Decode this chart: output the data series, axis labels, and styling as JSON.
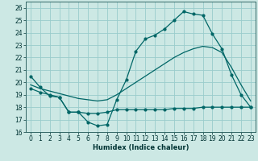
{
  "xlabel": "Humidex (Indice chaleur)",
  "background_color": "#cce8e4",
  "grid_color": "#99cccc",
  "line_color": "#006666",
  "xlim": [
    -0.5,
    23.5
  ],
  "ylim": [
    16,
    26.5
  ],
  "xticks": [
    0,
    1,
    2,
    3,
    4,
    5,
    6,
    7,
    8,
    9,
    10,
    11,
    12,
    13,
    14,
    15,
    16,
    17,
    18,
    19,
    20,
    21,
    22,
    23
  ],
  "yticks": [
    16,
    17,
    18,
    19,
    20,
    21,
    22,
    23,
    24,
    25,
    26
  ],
  "curve1_x": [
    0,
    1,
    2,
    3,
    4,
    5,
    6,
    7,
    8,
    9,
    10,
    11,
    12,
    13,
    14,
    15,
    16,
    17,
    18,
    19,
    20,
    21,
    22,
    23
  ],
  "curve1_y": [
    20.5,
    19.6,
    18.9,
    18.8,
    17.6,
    17.6,
    16.8,
    16.5,
    16.6,
    18.6,
    20.2,
    22.5,
    23.5,
    23.8,
    24.3,
    25.0,
    25.7,
    25.5,
    25.4,
    23.9,
    22.7,
    20.6,
    19.0,
    18.0
  ],
  "curve2_x": [
    0,
    1,
    2,
    3,
    4,
    5,
    6,
    7,
    8,
    9,
    10,
    11,
    12,
    13,
    14,
    15,
    16,
    17,
    18,
    19,
    20,
    21,
    22,
    23
  ],
  "curve2_y": [
    19.8,
    19.5,
    19.3,
    19.1,
    18.9,
    18.7,
    18.6,
    18.5,
    18.6,
    19.0,
    19.5,
    20.0,
    20.5,
    21.0,
    21.5,
    22.0,
    22.4,
    22.7,
    22.9,
    22.8,
    22.4,
    21.2,
    19.8,
    18.5
  ],
  "curve3_x": [
    0,
    1,
    2,
    3,
    4,
    5,
    6,
    7,
    8,
    9,
    10,
    11,
    12,
    13,
    14,
    15,
    16,
    17,
    18,
    19,
    20,
    21,
    22,
    23
  ],
  "curve3_y": [
    19.5,
    19.2,
    19.0,
    18.8,
    17.6,
    17.6,
    17.5,
    17.5,
    17.6,
    17.8,
    17.8,
    17.8,
    17.8,
    17.8,
    17.8,
    17.9,
    17.9,
    17.9,
    18.0,
    18.0,
    18.0,
    18.0,
    18.0,
    18.0
  ]
}
